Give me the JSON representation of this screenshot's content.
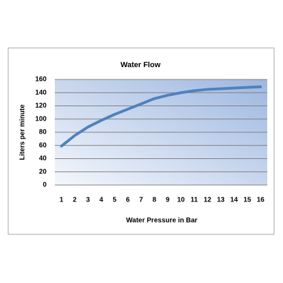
{
  "chart_data": {
    "type": "line",
    "title": "Water Flow",
    "x_label": "Water Pressure in Bar",
    "y_label": "Liters per minute",
    "categories": [
      "1",
      "2",
      "3",
      "4",
      "5",
      "6",
      "7",
      "8",
      "9",
      "10",
      "11",
      "12",
      "13",
      "14",
      "15",
      "16"
    ],
    "series": [
      {
        "name": "Water Flow",
        "color": "#4f81bd",
        "values": [
          59,
          75,
          88,
          98,
          107,
          115,
          123,
          131,
          136,
          140,
          143,
          145,
          146,
          147,
          148,
          149
        ]
      }
    ],
    "ylim": [
      0,
      160
    ],
    "yticks": [
      0,
      20,
      40,
      60,
      80,
      100,
      120,
      140,
      160
    ],
    "grid": true
  }
}
